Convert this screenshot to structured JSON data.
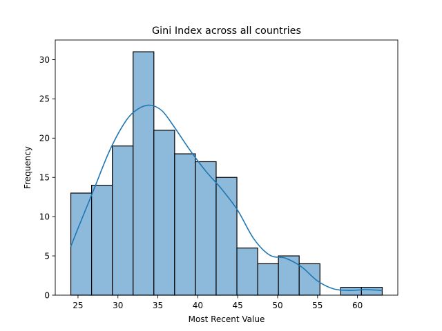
{
  "chart_data": {
    "type": "bar",
    "title": "Gini Index across all countries",
    "xlabel": "Most Recent Value",
    "ylabel": "Frequency",
    "bin_edges": [
      24.1,
      26.7,
      29.3,
      31.9,
      34.5,
      37.1,
      39.7,
      42.3,
      44.9,
      47.5,
      50.1,
      52.7,
      55.3,
      57.9,
      60.5,
      63.1
    ],
    "values": [
      13,
      14,
      19,
      31,
      21,
      18,
      17,
      15,
      6,
      4,
      5,
      4,
      0,
      1,
      1
    ],
    "kde": {
      "x": [
        24.1,
        25.0,
        27.0,
        29.0,
        31.0,
        32.5,
        34.0,
        35.5,
        37.0,
        39.0,
        41.0,
        43.0,
        45.0,
        47.0,
        49.0,
        51.0,
        53.0,
        55.0,
        57.0,
        59.0,
        61.0,
        63.1
      ],
      "y": [
        6.2,
        8.5,
        13.5,
        18.5,
        22.2,
        23.7,
        24.2,
        23.5,
        21.5,
        18.5,
        15.8,
        13.5,
        10.8,
        7.2,
        5.1,
        4.7,
        3.6,
        1.8,
        0.8,
        0.6,
        0.7,
        0.6
      ]
    },
    "xlim": [
      22.15,
      65.05
    ],
    "ylim": [
      0,
      32.5
    ],
    "xticks": [
      25,
      30,
      35,
      40,
      45,
      50,
      55,
      60
    ],
    "yticks": [
      0,
      5,
      10,
      15,
      20,
      25,
      30
    ],
    "grid": false,
    "colors": {
      "bar_fill": "#8db9da",
      "bar_edge": "#000000",
      "kde_line": "#1f77b4"
    }
  }
}
